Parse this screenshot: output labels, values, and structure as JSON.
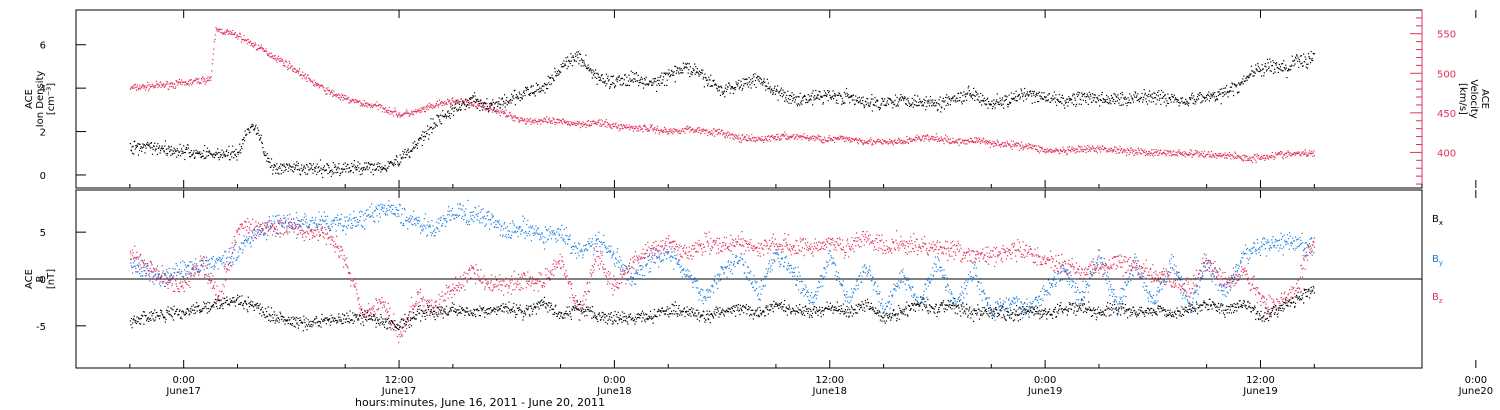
{
  "chart_data": [
    {
      "type": "scatter",
      "panel": "top",
      "ylabel_left": [
        "ACE",
        "Ion Density",
        "[cm⁻³]"
      ],
      "ylabel_right": [
        "ACE",
        "Velocity",
        "[km/s]"
      ],
      "yticks_left": [
        0,
        2,
        4,
        6
      ],
      "ylim_left": [
        -0.6,
        7.6
      ],
      "yticks_right": [
        400,
        450,
        500,
        550
      ],
      "ylim_right": [
        355,
        580
      ],
      "series": [
        {
          "name": "Density",
          "axis": "left",
          "color": "#000000",
          "x": [
            -6,
            -4,
            -2,
            0,
            2,
            4,
            6,
            7,
            8,
            9,
            10,
            11,
            12,
            14,
            16,
            18,
            20,
            22,
            24,
            26,
            28,
            30,
            32,
            34,
            36,
            38,
            40,
            42,
            44,
            46,
            48,
            50,
            52,
            54,
            56,
            58,
            60,
            62,
            64,
            66,
            68,
            70,
            72,
            74,
            76,
            78,
            80,
            82,
            84,
            86,
            88,
            90,
            92,
            94,
            96,
            98,
            100,
            102,
            104,
            106,
            108,
            110,
            112,
            114,
            116,
            117,
            118,
            119,
            120,
            121,
            122,
            123,
            124,
            125,
            126
          ],
          "values": [
            1.3,
            1.4,
            1.2,
            1.1,
            1.0,
            1.0,
            1.0,
            2.0,
            2.3,
            1.0,
            0.3,
            0.3,
            0.3,
            0.3,
            0.3,
            0.3,
            0.4,
            0.4,
            0.7,
            1.5,
            2.5,
            3.0,
            3.5,
            3.2,
            3.4,
            3.8,
            4.0,
            5.0,
            5.5,
            4.5,
            4.3,
            4.5,
            4.2,
            4.6,
            5.0,
            4.5,
            3.9,
            4.2,
            4.5,
            3.8,
            3.5,
            3.6,
            3.7,
            3.6,
            3.3,
            3.4,
            3.5,
            3.4,
            3.3,
            3.6,
            3.8,
            3.3,
            3.5,
            3.7,
            3.6,
            3.4,
            3.6,
            3.5,
            3.5,
            3.6,
            3.7,
            3.5,
            3.5,
            3.6,
            3.8,
            4.0,
            4.3,
            4.8,
            4.9,
            5.0,
            5.0,
            4.9,
            5.4,
            5.2,
            5.6
          ]
        },
        {
          "name": "Velocity",
          "axis": "right",
          "color": "#e0305a",
          "x": [
            -6,
            -4,
            -2,
            0,
            2,
            3,
            3.5,
            4,
            6,
            8,
            10,
            12,
            14,
            16,
            18,
            20,
            22,
            24,
            26,
            28,
            30,
            32,
            34,
            36,
            38,
            40,
            42,
            44,
            46,
            48,
            50,
            52,
            54,
            56,
            58,
            60,
            62,
            64,
            66,
            68,
            70,
            72,
            74,
            76,
            78,
            80,
            82,
            84,
            86,
            88,
            90,
            92,
            94,
            96,
            98,
            100,
            102,
            104,
            106,
            108,
            110,
            112,
            114,
            116,
            117,
            118,
            119,
            120,
            121,
            122,
            123,
            124,
            125,
            126
          ],
          "values": [
            482,
            484,
            486,
            488,
            492,
            494,
            555,
            555,
            548,
            535,
            522,
            508,
            492,
            478,
            468,
            462,
            458,
            448,
            452,
            460,
            466,
            462,
            458,
            448,
            441,
            440,
            439,
            437,
            438,
            434,
            432,
            431,
            427,
            430,
            428,
            425,
            418,
            417,
            420,
            421,
            419,
            417,
            418,
            415,
            413,
            414,
            419,
            418,
            414,
            416,
            413,
            410,
            409,
            403,
            402,
            404,
            405,
            404,
            402,
            400,
            400,
            399,
            398,
            397,
            396,
            394,
            393,
            395,
            396,
            398,
            398,
            399,
            399,
            399
          ]
        }
      ]
    },
    {
      "type": "scatter",
      "panel": "bottom",
      "ylabel_left": [
        "ACE",
        "B",
        "[nT]"
      ],
      "yticks_left": [
        -5,
        0,
        5
      ],
      "ylim_left": [
        -9.5,
        9.5
      ],
      "zero_line": true,
      "series": [
        {
          "name": "Bx",
          "label_base": "B",
          "label_sub": "x",
          "color": "#000000",
          "x": [
            -6,
            -4,
            -2,
            0,
            2,
            4,
            6,
            8,
            10,
            12,
            14,
            16,
            18,
            20,
            22,
            24,
            26,
            28,
            30,
            32,
            34,
            36,
            38,
            40,
            42,
            44,
            46,
            48,
            50,
            52,
            54,
            56,
            58,
            60,
            62,
            64,
            66,
            68,
            70,
            72,
            74,
            76,
            78,
            80,
            82,
            84,
            86,
            88,
            90,
            92,
            94,
            96,
            98,
            100,
            102,
            104,
            106,
            108,
            110,
            112,
            114,
            116,
            118,
            120,
            121,
            122,
            123,
            124,
            125,
            126
          ],
          "values": [
            -4.5,
            -4.0,
            -3.6,
            -3.4,
            -3.0,
            -2.5,
            -2.3,
            -3.0,
            -4.0,
            -4.5,
            -4.7,
            -4.3,
            -4.2,
            -4.0,
            -4.5,
            -5.0,
            -3.5,
            -3.5,
            -3.2,
            -3.3,
            -3.4,
            -3.0,
            -3.5,
            -2.5,
            -4.0,
            -3.0,
            -3.8,
            -4.2,
            -3.9,
            -4.0,
            -3.2,
            -3.5,
            -4.0,
            -3.4,
            -3.0,
            -3.6,
            -2.8,
            -3.2,
            -3.6,
            -3.0,
            -3.5,
            -2.8,
            -4.0,
            -3.5,
            -2.5,
            -3.0,
            -2.8,
            -3.6,
            -3.3,
            -3.6,
            -3.3,
            -3.5,
            -3.2,
            -3.0,
            -3.4,
            -3.0,
            -3.4,
            -3.3,
            -3.6,
            -3.2,
            -2.5,
            -3.4,
            -2.6,
            -4.0,
            -3.5,
            -3.0,
            -2.5,
            -2.0,
            -1.5,
            -1.0
          ]
        },
        {
          "name": "By",
          "label_base": "B",
          "label_sub": "y",
          "color": "#1a7fdf",
          "x": [
            -6,
            -4,
            -2,
            0,
            2,
            4,
            6,
            8,
            10,
            12,
            14,
            16,
            18,
            20,
            22,
            24,
            26,
            28,
            30,
            32,
            34,
            36,
            38,
            40,
            42,
            44,
            46,
            48,
            50,
            52,
            54,
            56,
            58,
            60,
            62,
            64,
            66,
            68,
            70,
            72,
            74,
            76,
            78,
            80,
            82,
            84,
            86,
            88,
            90,
            92,
            94,
            96,
            98,
            100,
            102,
            104,
            106,
            108,
            110,
            112,
            114,
            116,
            118,
            120,
            121,
            122,
            123,
            124,
            125,
            126
          ],
          "values": [
            1.5,
            0.8,
            0.2,
            1.0,
            1.5,
            2.0,
            3.0,
            5.0,
            5.8,
            6.0,
            6.0,
            6.0,
            6.0,
            6.5,
            7.5,
            7.0,
            6.0,
            5.5,
            7.0,
            7.0,
            6.5,
            5.0,
            5.5,
            4.5,
            5.0,
            3.0,
            4.0,
            2.5,
            0.0,
            2.0,
            3.0,
            0.5,
            -2.0,
            1.0,
            2.5,
            -1.5,
            3.0,
            0.5,
            -2.5,
            2.5,
            -2.5,
            1.5,
            -3.0,
            0.5,
            -2.5,
            2.0,
            -3.0,
            1.0,
            -3.5,
            -2.5,
            -3.0,
            -1.5,
            1.0,
            -2.0,
            2.5,
            -3.0,
            2.0,
            -2.5,
            2.0,
            -3.0,
            2.0,
            -1.5,
            2.5,
            3.5,
            3.8,
            4.0,
            4.0,
            4.0,
            3.5,
            3.5
          ]
        },
        {
          "name": "Bz",
          "label_base": "B",
          "label_sub": "z",
          "color": "#e0305a",
          "x": [
            -6,
            -4,
            -2,
            0,
            2,
            4,
            6,
            8,
            10,
            12,
            14,
            16,
            18,
            20,
            22,
            24,
            26,
            28,
            30,
            32,
            34,
            36,
            38,
            40,
            42,
            44,
            46,
            48,
            50,
            52,
            54,
            56,
            58,
            60,
            62,
            64,
            66,
            68,
            70,
            72,
            74,
            76,
            78,
            80,
            82,
            84,
            86,
            88,
            90,
            92,
            94,
            96,
            98,
            100,
            102,
            104,
            106,
            108,
            110,
            112,
            114,
            116,
            118,
            120,
            121,
            122,
            123,
            124,
            125,
            126
          ],
          "values": [
            2.5,
            1.5,
            0.0,
            -0.5,
            2.0,
            -2.0,
            5.5,
            5.5,
            5.8,
            5.5,
            5.0,
            5.0,
            2.0,
            -4.0,
            -2.5,
            -6.0,
            -2.0,
            -3.0,
            -1.0,
            1.0,
            -0.5,
            -0.5,
            0.0,
            -0.2,
            2.0,
            -3.5,
            2.5,
            -1.0,
            2.0,
            3.0,
            4.0,
            2.5,
            4.0,
            3.5,
            4.0,
            3.0,
            4.0,
            3.5,
            3.5,
            4.0,
            3.5,
            4.5,
            3.5,
            4.0,
            3.5,
            3.5,
            3.0,
            2.5,
            2.5,
            3.0,
            3.0,
            2.0,
            1.5,
            1.0,
            1.0,
            2.0,
            1.5,
            0.5,
            0.0,
            -1.0,
            2.0,
            -0.5,
            1.0,
            -2.0,
            -3.0,
            -2.5,
            -1.5,
            -1.0,
            2.5,
            4.0
          ]
        }
      ]
    }
  ],
  "x_axis": {
    "xlim": [
      -12,
      138
    ],
    "ticks": [
      {
        "h": 0,
        "time": "0:00",
        "date": "June17"
      },
      {
        "h": 24,
        "time": "12:00",
        "date": "June17"
      },
      {
        "h": 48,
        "time": "0:00",
        "date": "June18"
      },
      {
        "h": 72,
        "time": "12:00",
        "date": "June18"
      },
      {
        "h": 96,
        "time": "0:00",
        "date": "June19"
      },
      {
        "h": 120,
        "time": "12:00",
        "date": "June19"
      },
      {
        "h": 144,
        "time": "0:00",
        "date": "June20"
      }
    ],
    "xlabel": "hours:minutes, June 16, 2011 - June 20, 2011"
  }
}
